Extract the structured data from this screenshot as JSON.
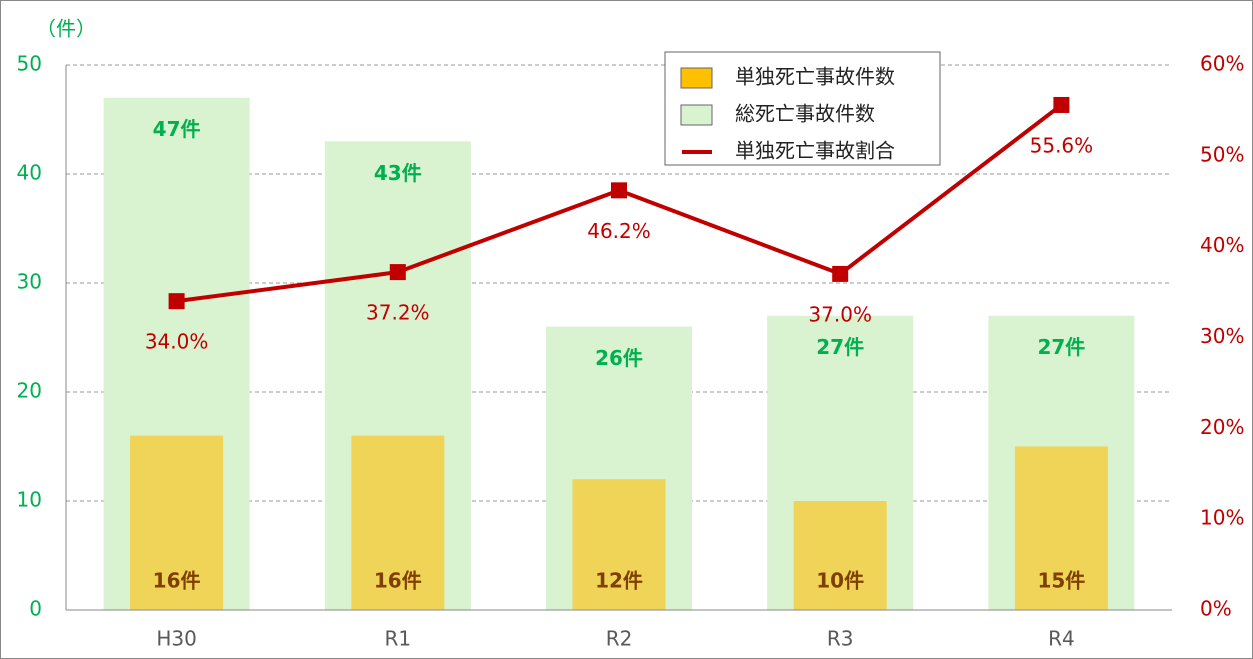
{
  "chart_data": {
    "type": "bar",
    "y_axis_label": "（件）",
    "categories": [
      "H30",
      "R1",
      "R2",
      "R3",
      "R4"
    ],
    "series": [
      {
        "name": "単独死亡事故件数",
        "type": "bar",
        "color": "#f0d458",
        "legend_color": "#ffc000",
        "label_color": "#7f3f00",
        "values": [
          16,
          16,
          12,
          10,
          15
        ],
        "value_labels": [
          "16件",
          "16件",
          "12件",
          "10件",
          "15件"
        ]
      },
      {
        "name": "総死亡事故件数",
        "type": "bar",
        "color": "#d9f2d0",
        "label_color": "#00b050",
        "values": [
          47,
          43,
          26,
          27,
          27
        ],
        "value_labels": [
          "47件",
          "43件",
          "26件",
          "27件",
          "27件"
        ]
      },
      {
        "name": "単独死亡事故割合",
        "type": "line",
        "axis": "y2",
        "color": "#c00000",
        "values": [
          34.0,
          37.2,
          46.2,
          37.0,
          55.6
        ],
        "value_labels": [
          "34.0%",
          "37.2%",
          "46.2%",
          "37.0%",
          "55.6%"
        ]
      }
    ],
    "ylim": [
      0,
      50
    ],
    "yticks": [
      0,
      10,
      20,
      30,
      40,
      50
    ],
    "y2lim": [
      0,
      60
    ],
    "y2ticks": [
      {
        "value": 0,
        "label": "0%"
      },
      {
        "value": 10,
        "label": "10%"
      },
      {
        "value": 20,
        "label": "20%"
      },
      {
        "value": 30,
        "label": "30%"
      },
      {
        "value": 40,
        "label": "40%"
      },
      {
        "value": 50,
        "label": "50%"
      },
      {
        "value": 60,
        "label": "60%"
      }
    ],
    "grid": true,
    "legend": "top-right"
  }
}
